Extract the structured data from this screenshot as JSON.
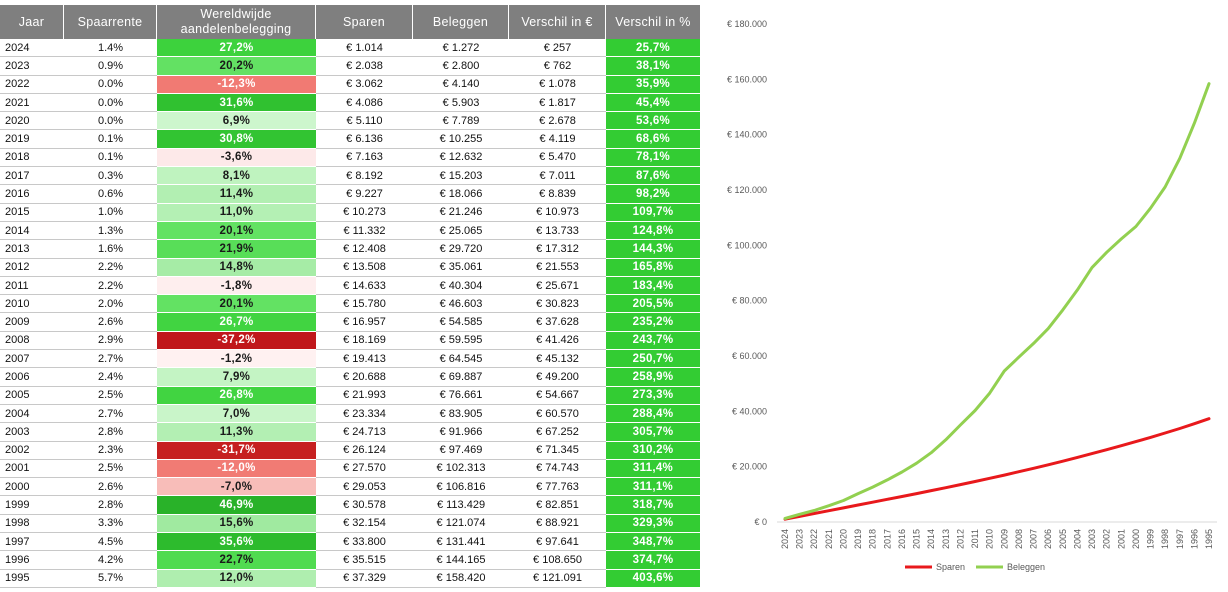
{
  "table": {
    "headers": [
      "Jaar",
      "Spaarrente",
      "Wereldwijde aandelenbelegging",
      "Sparen",
      "Beleggen",
      "Verschil in €",
      "Verschil in %"
    ],
    "diff_pct_fill": "#33cc33",
    "rows": [
      {
        "year": "2024",
        "savings_rate": "1.4%",
        "stock_return": "27,2%",
        "savings": "€ 1.014",
        "investing": "€ 1.272",
        "diff_eur": "€ 257",
        "diff_pct": "25,7%",
        "return_fill": "#3dd23d",
        "return_text": "#ffffff"
      },
      {
        "year": "2023",
        "savings_rate": "0.9%",
        "stock_return": "20,2%",
        "savings": "€ 2.038",
        "investing": "€ 2.800",
        "diff_eur": "€ 762",
        "diff_pct": "38,1%",
        "return_fill": "#63e163",
        "return_text": "#1a1a1a"
      },
      {
        "year": "2022",
        "savings_rate": "0.0%",
        "stock_return": "-12,3%",
        "savings": "€ 3.062",
        "investing": "€ 4.140",
        "diff_eur": "€ 1.078",
        "diff_pct": "35,9%",
        "return_fill": "#f17a73",
        "return_text": "#ffffff"
      },
      {
        "year": "2021",
        "savings_rate": "0.0%",
        "stock_return": "31,6%",
        "savings": "€ 4.086",
        "investing": "€ 5.903",
        "diff_eur": "€ 1.817",
        "diff_pct": "45,4%",
        "return_fill": "#30c130",
        "return_text": "#ffffff"
      },
      {
        "year": "2020",
        "savings_rate": "0.0%",
        "stock_return": "6,9%",
        "savings": "€ 5.110",
        "investing": "€ 7.789",
        "diff_eur": "€ 2.678",
        "diff_pct": "53,6%",
        "return_fill": "#cdf6cd",
        "return_text": "#1a1a1a"
      },
      {
        "year": "2019",
        "savings_rate": "0.1%",
        "stock_return": "30,8%",
        "savings": "€ 6.136",
        "investing": "€ 10.255",
        "diff_eur": "€ 4.119",
        "diff_pct": "68,6%",
        "return_fill": "#32c432",
        "return_text": "#ffffff"
      },
      {
        "year": "2018",
        "savings_rate": "0.1%",
        "stock_return": "-3,6%",
        "savings": "€ 7.163",
        "investing": "€ 12.632",
        "diff_eur": "€ 5.470",
        "diff_pct": "78,1%",
        "return_fill": "#fde9e9",
        "return_text": "#1a1a1a"
      },
      {
        "year": "2017",
        "savings_rate": "0.3%",
        "stock_return": "8,1%",
        "savings": "€ 8.192",
        "investing": "€ 15.203",
        "diff_eur": "€ 7.011",
        "diff_pct": "87,6%",
        "return_fill": "#bff3bf",
        "return_text": "#1a1a1a"
      },
      {
        "year": "2016",
        "savings_rate": "0.6%",
        "stock_return": "11,4%",
        "savings": "€ 9.227",
        "investing": "€ 18.066",
        "diff_eur": "€ 8.839",
        "diff_pct": "98,2%",
        "return_fill": "#b2efb2",
        "return_text": "#1a1a1a"
      },
      {
        "year": "2015",
        "savings_rate": "1.0%",
        "stock_return": "11,0%",
        "savings": "€ 10.273",
        "investing": "€ 21.246",
        "diff_eur": "€ 10.973",
        "diff_pct": "109,7%",
        "return_fill": "#b4f0b4",
        "return_text": "#1a1a1a"
      },
      {
        "year": "2014",
        "savings_rate": "1.3%",
        "stock_return": "20,1%",
        "savings": "€ 11.332",
        "investing": "€ 25.065",
        "diff_eur": "€ 13.733",
        "diff_pct": "124,8%",
        "return_fill": "#63e263",
        "return_text": "#1a1a1a"
      },
      {
        "year": "2013",
        "savings_rate": "1.6%",
        "stock_return": "21,9%",
        "savings": "€ 12.408",
        "investing": "€ 29.720",
        "diff_eur": "€ 17.312",
        "diff_pct": "144,3%",
        "return_fill": "#58de58",
        "return_text": "#1a1a1a"
      },
      {
        "year": "2012",
        "savings_rate": "2.2%",
        "stock_return": "14,8%",
        "savings": "€ 13.508",
        "investing": "€ 35.061",
        "diff_eur": "€ 21.553",
        "diff_pct": "165,8%",
        "return_fill": "#a6eca6",
        "return_text": "#1a1a1a"
      },
      {
        "year": "2011",
        "savings_rate": "2.2%",
        "stock_return": "-1,8%",
        "savings": "€ 14.633",
        "investing": "€ 40.304",
        "diff_eur": "€ 25.671",
        "diff_pct": "183,4%",
        "return_fill": "#feeeee",
        "return_text": "#1a1a1a"
      },
      {
        "year": "2010",
        "savings_rate": "2.0%",
        "stock_return": "20,1%",
        "savings": "€ 15.780",
        "investing": "€ 46.603",
        "diff_eur": "€ 30.823",
        "diff_pct": "205,5%",
        "return_fill": "#63e263",
        "return_text": "#1a1a1a"
      },
      {
        "year": "2009",
        "savings_rate": "2.6%",
        "stock_return": "26,7%",
        "savings": "€ 16.957",
        "investing": "€ 54.585",
        "diff_eur": "€ 37.628",
        "diff_pct": "235,2%",
        "return_fill": "#41d441",
        "return_text": "#ffffff"
      },
      {
        "year": "2008",
        "savings_rate": "2.9%",
        "stock_return": "-37,2%",
        "savings": "€ 18.169",
        "investing": "€ 59.595",
        "diff_eur": "€ 41.426",
        "diff_pct": "243,7%",
        "return_fill": "#c0171b",
        "return_text": "#ffffff"
      },
      {
        "year": "2007",
        "savings_rate": "2.7%",
        "stock_return": "-1,2%",
        "savings": "€ 19.413",
        "investing": "€ 64.545",
        "diff_eur": "€ 45.132",
        "diff_pct": "250,7%",
        "return_fill": "#fff1f1",
        "return_text": "#1a1a1a"
      },
      {
        "year": "2006",
        "savings_rate": "2.4%",
        "stock_return": "7,9%",
        "savings": "€ 20.688",
        "investing": "€ 69.887",
        "diff_eur": "€ 49.200",
        "diff_pct": "258,9%",
        "return_fill": "#c4f4c4",
        "return_text": "#1a1a1a"
      },
      {
        "year": "2005",
        "savings_rate": "2.5%",
        "stock_return": "26,8%",
        "savings": "€ 21.993",
        "investing": "€ 76.661",
        "diff_eur": "€ 54.667",
        "diff_pct": "273,3%",
        "return_fill": "#41d441",
        "return_text": "#ffffff"
      },
      {
        "year": "2004",
        "savings_rate": "2.7%",
        "stock_return": "7,0%",
        "savings": "€ 23.334",
        "investing": "€ 83.905",
        "diff_eur": "€ 60.570",
        "diff_pct": "288,4%",
        "return_fill": "#c9f5c9",
        "return_text": "#1a1a1a"
      },
      {
        "year": "2003",
        "savings_rate": "2.8%",
        "stock_return": "11,3%",
        "savings": "€ 24.713",
        "investing": "€ 91.966",
        "diff_eur": "€ 67.252",
        "diff_pct": "305,7%",
        "return_fill": "#b3efb3",
        "return_text": "#1a1a1a"
      },
      {
        "year": "2002",
        "savings_rate": "2.3%",
        "stock_return": "-31,7%",
        "savings": "€ 26.124",
        "investing": "€ 97.469",
        "diff_eur": "€ 71.345",
        "diff_pct": "310,2%",
        "return_fill": "#c62020",
        "return_text": "#ffffff"
      },
      {
        "year": "2001",
        "savings_rate": "2.5%",
        "stock_return": "-12,0%",
        "savings": "€ 27.570",
        "investing": "€ 102.313",
        "diff_eur": "€ 74.743",
        "diff_pct": "311,4%",
        "return_fill": "#f17b74",
        "return_text": "#ffffff"
      },
      {
        "year": "2000",
        "savings_rate": "2.6%",
        "stock_return": "-7,0%",
        "savings": "€ 29.053",
        "investing": "€ 106.816",
        "diff_eur": "€ 77.763",
        "diff_pct": "311,1%",
        "return_fill": "#f8bdb9",
        "return_text": "#1a1a1a"
      },
      {
        "year": "1999",
        "savings_rate": "2.8%",
        "stock_return": "46,9%",
        "savings": "€ 30.578",
        "investing": "€ 113.429",
        "diff_eur": "€ 82.851",
        "diff_pct": "318,7%",
        "return_fill": "#29b229",
        "return_text": "#ffffff"
      },
      {
        "year": "1998",
        "savings_rate": "3.3%",
        "stock_return": "15,6%",
        "savings": "€ 32.154",
        "investing": "€ 121.074",
        "diff_eur": "€ 88.921",
        "diff_pct": "329,3%",
        "return_fill": "#a0eaa0",
        "return_text": "#1a1a1a"
      },
      {
        "year": "1997",
        "savings_rate": "4.5%",
        "stock_return": "35,6%",
        "savings": "€ 33.800",
        "investing": "€ 131.441",
        "diff_eur": "€ 97.641",
        "diff_pct": "348,7%",
        "return_fill": "#2dbb2d",
        "return_text": "#ffffff"
      },
      {
        "year": "1996",
        "savings_rate": "4.2%",
        "stock_return": "22,7%",
        "savings": "€ 35.515",
        "investing": "€ 144.165",
        "diff_eur": "€ 108.650",
        "diff_pct": "374,7%",
        "return_fill": "#50db50",
        "return_text": "#1a1a1a"
      },
      {
        "year": "1995",
        "savings_rate": "5.7%",
        "stock_return": "12,0%",
        "savings": "€ 37.329",
        "investing": "€ 158.420",
        "diff_eur": "€ 121.091",
        "diff_pct": "403,6%",
        "return_fill": "#afeeaf",
        "return_text": "#1a1a1a"
      }
    ]
  },
  "chart_data": {
    "type": "line",
    "categories": [
      "2024",
      "2023",
      "2022",
      "2021",
      "2020",
      "2019",
      "2018",
      "2017",
      "2016",
      "2015",
      "2014",
      "2013",
      "2012",
      "2011",
      "2010",
      "2009",
      "2008",
      "2007",
      "2006",
      "2005",
      "2004",
      "2003",
      "2002",
      "2001",
      "2000",
      "1999",
      "1998",
      "1997",
      "1996",
      "1995"
    ],
    "series": [
      {
        "name": "Sparen",
        "color": "#e8191c",
        "values": [
          1014,
          2038,
          3062,
          4086,
          5110,
          6136,
          7163,
          8192,
          9227,
          10273,
          11332,
          12408,
          13508,
          14633,
          15780,
          16957,
          18169,
          19413,
          20688,
          21993,
          23334,
          24713,
          26124,
          27570,
          29053,
          30578,
          32154,
          33800,
          35515,
          37329
        ]
      },
      {
        "name": "Beleggen",
        "color": "#92d050",
        "values": [
          1272,
          2800,
          4140,
          5903,
          7789,
          10255,
          12632,
          15203,
          18066,
          21246,
          25065,
          29720,
          35061,
          40304,
          46603,
          54585,
          59595,
          64545,
          69887,
          76661,
          83905,
          91966,
          97469,
          102313,
          106816,
          113429,
          121074,
          131441,
          144165,
          158420
        ]
      }
    ],
    "yticks": [
      0,
      20000,
      40000,
      60000,
      80000,
      100000,
      120000,
      140000,
      160000,
      180000
    ],
    "ytick_labels": [
      "€ 0",
      "€ 20.000",
      "€ 40.000",
      "€ 60.000",
      "€ 80.000",
      "€ 100.000",
      "€ 120.000",
      "€ 140.000",
      "€ 160.000",
      "€ 180.000"
    ],
    "ylim": [
      0,
      180000
    ],
    "grid": false,
    "legend": "bottom"
  }
}
